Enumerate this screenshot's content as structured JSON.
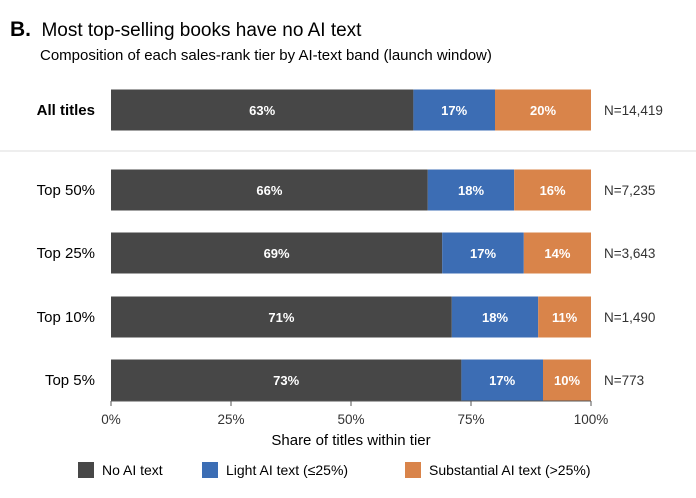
{
  "panel_letter": "B.",
  "title": "Most top-selling books have no AI text",
  "subtitle": "Composition of each sales-rank tier by AI-text band (launch window)",
  "colors": {
    "No AI text": "#474747",
    "Light AI text (≤25%)": "#3c6db4",
    "Substantial AI text (>25%)": "#d9844a",
    "separator": "#dcdcdc",
    "axis": "#555555"
  },
  "chart_data": {
    "type": "bar",
    "orientation": "horizontal",
    "stacked": true,
    "categories": [
      "All titles",
      "Top 50%",
      "Top 25%",
      "Top 10%",
      "Top 5%"
    ],
    "bold_categories": [
      "All titles"
    ],
    "n_labels": [
      "N=14,419",
      "N=7,235",
      "N=3,643",
      "N=1,490",
      "N=773"
    ],
    "series": [
      {
        "name": "No AI text",
        "values": [
          63,
          66,
          69,
          71,
          73
        ],
        "labels": [
          "63%",
          "66%",
          "69%",
          "71%",
          "73%"
        ]
      },
      {
        "name": "Light AI text (≤25%)",
        "values": [
          17,
          18,
          17,
          18,
          17
        ],
        "labels": [
          "17%",
          "18%",
          "17%",
          "18%",
          "17%"
        ]
      },
      {
        "name": "Substantial AI text (>25%)",
        "values": [
          20,
          16,
          14,
          11,
          10
        ],
        "labels": [
          "20%",
          "16%",
          "14%",
          "11%",
          "10%"
        ]
      }
    ],
    "xlabel": "Share of titles within tier",
    "xlim": [
      0,
      100
    ],
    "xticks": [
      0,
      25,
      50,
      75,
      100
    ],
    "xtick_labels": [
      "0%",
      "25%",
      "50%",
      "75%",
      "100%"
    ],
    "grid": false,
    "legend_position": "bottom"
  }
}
